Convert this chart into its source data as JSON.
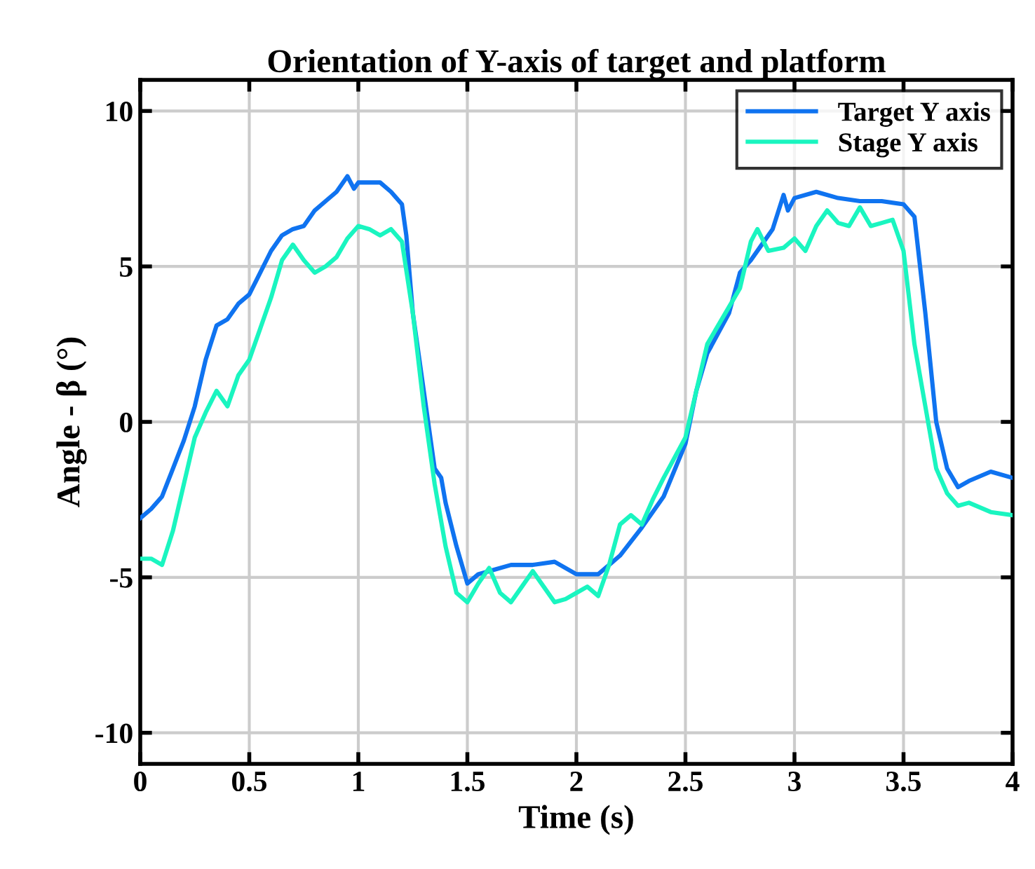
{
  "chart_data": {
    "type": "line",
    "title": "Orientation of Y-axis of target and platform",
    "xlabel": "Time (s)",
    "ylabel": "Angle - β (°)",
    "xlim": [
      0,
      4
    ],
    "xticks": [
      0,
      0.5,
      1,
      1.5,
      2,
      2.5,
      3,
      3.5,
      4
    ],
    "ylim": [
      -11,
      11
    ],
    "yticks": [
      -10,
      -5,
      0,
      5,
      10
    ],
    "grid": true,
    "legend": "top right",
    "line_style": "solid",
    "marker": "none",
    "series": [
      {
        "name": "Target Y axis",
        "color": "#0f73f0",
        "x": [
          0,
          0.05,
          0.1,
          0.15,
          0.2,
          0.25,
          0.3,
          0.35,
          0.4,
          0.45,
          0.5,
          0.55,
          0.6,
          0.65,
          0.7,
          0.75,
          0.8,
          0.85,
          0.9,
          0.95,
          0.98,
          1.0,
          1.05,
          1.1,
          1.15,
          1.2,
          1.22,
          1.25,
          1.3,
          1.35,
          1.38,
          1.4,
          1.45,
          1.5,
          1.55,
          1.6,
          1.7,
          1.8,
          1.9,
          2.0,
          2.1,
          2.15,
          2.2,
          2.3,
          2.4,
          2.5,
          2.55,
          2.6,
          2.7,
          2.75,
          2.8,
          2.85,
          2.9,
          2.95,
          2.97,
          3.0,
          3.1,
          3.2,
          3.3,
          3.4,
          3.5,
          3.55,
          3.6,
          3.65,
          3.7,
          3.75,
          3.8,
          3.9,
          4.0
        ],
        "values": [
          -3.1,
          -2.8,
          -2.4,
          -1.5,
          -0.6,
          0.5,
          2.0,
          3.1,
          3.3,
          3.8,
          4.1,
          4.8,
          5.5,
          6.0,
          6.2,
          6.3,
          6.8,
          7.1,
          7.4,
          7.9,
          7.5,
          7.7,
          7.7,
          7.7,
          7.4,
          7.0,
          6.0,
          3.5,
          1.0,
          -1.5,
          -1.8,
          -2.6,
          -4.0,
          -5.2,
          -4.9,
          -4.8,
          -4.6,
          -4.6,
          -4.5,
          -4.9,
          -4.9,
          -4.6,
          -4.3,
          -3.4,
          -2.4,
          -0.7,
          1.0,
          2.2,
          3.5,
          4.8,
          5.2,
          5.7,
          6.2,
          7.3,
          6.8,
          7.2,
          7.4,
          7.2,
          7.1,
          7.1,
          7.0,
          6.6,
          3.5,
          0.0,
          -1.5,
          -2.1,
          -1.9,
          -1.6,
          -1.8
        ]
      },
      {
        "name": "Stage Y axis",
        "color": "#1af5c0",
        "x": [
          0,
          0.05,
          0.1,
          0.15,
          0.2,
          0.25,
          0.3,
          0.35,
          0.4,
          0.45,
          0.5,
          0.55,
          0.6,
          0.65,
          0.7,
          0.75,
          0.8,
          0.85,
          0.9,
          0.95,
          1.0,
          1.05,
          1.1,
          1.15,
          1.2,
          1.25,
          1.3,
          1.35,
          1.4,
          1.45,
          1.5,
          1.55,
          1.6,
          1.65,
          1.7,
          1.75,
          1.8,
          1.85,
          1.9,
          1.95,
          2.0,
          2.05,
          2.1,
          2.15,
          2.2,
          2.25,
          2.3,
          2.35,
          2.4,
          2.5,
          2.55,
          2.6,
          2.7,
          2.75,
          2.8,
          2.83,
          2.88,
          2.95,
          3.0,
          3.05,
          3.1,
          3.15,
          3.2,
          3.25,
          3.3,
          3.35,
          3.4,
          3.45,
          3.5,
          3.55,
          3.6,
          3.65,
          3.7,
          3.75,
          3.8,
          3.9,
          4.0
        ],
        "values": [
          -4.4,
          -4.4,
          -4.6,
          -3.5,
          -2.0,
          -0.5,
          0.3,
          1.0,
          0.5,
          1.5,
          2.0,
          3.0,
          4.0,
          5.2,
          5.7,
          5.2,
          4.8,
          5.0,
          5.3,
          5.9,
          6.3,
          6.2,
          6.0,
          6.2,
          5.8,
          3.5,
          0.5,
          -2.0,
          -4.0,
          -5.5,
          -5.8,
          -5.2,
          -4.7,
          -5.5,
          -5.8,
          -5.3,
          -4.8,
          -5.3,
          -5.8,
          -5.7,
          -5.5,
          -5.3,
          -5.6,
          -4.6,
          -3.3,
          -3.0,
          -3.3,
          -2.5,
          -1.8,
          -0.5,
          1.0,
          2.5,
          3.7,
          4.3,
          5.8,
          6.2,
          5.5,
          5.6,
          5.9,
          5.5,
          6.3,
          6.8,
          6.4,
          6.3,
          6.9,
          6.3,
          6.4,
          6.5,
          5.5,
          2.5,
          0.5,
          -1.5,
          -2.3,
          -2.7,
          -2.6,
          -2.9,
          -3.0
        ]
      }
    ]
  }
}
